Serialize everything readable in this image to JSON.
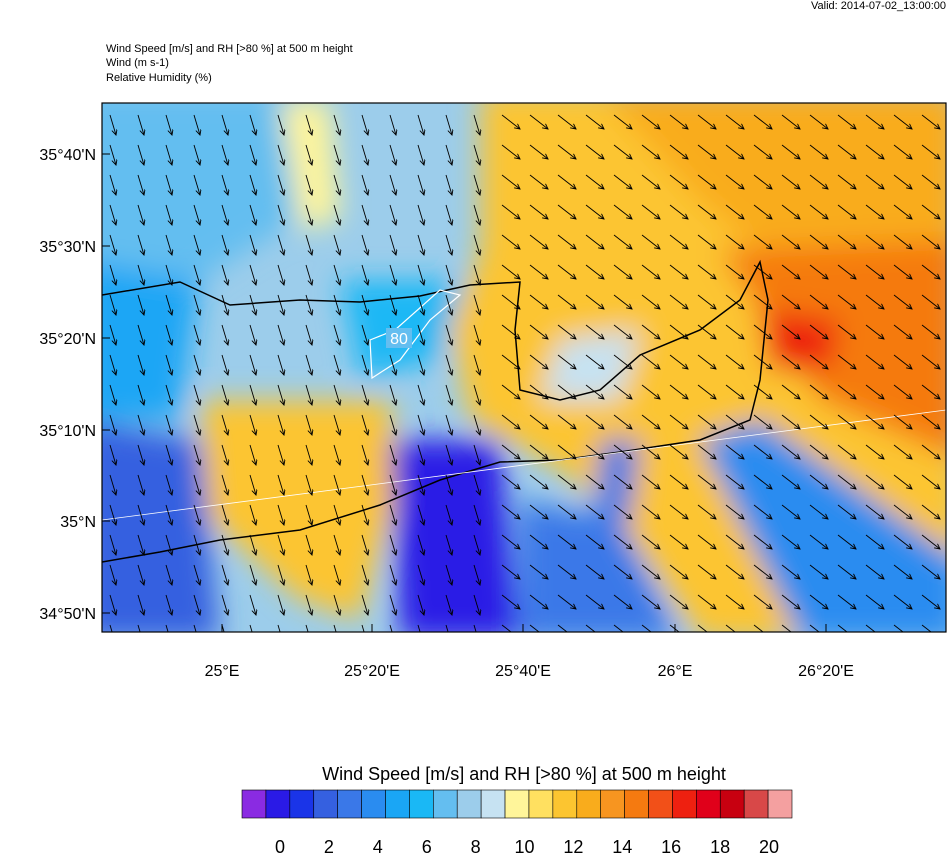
{
  "header": {
    "valid": "Valid: 2014-07-02_13:00:00",
    "lines": [
      "Wind Speed [m/s] and RH [>80 %] at 500 m height",
      "Wind   (m s-1)",
      "Relative Humidity   (%)"
    ]
  },
  "map": {
    "lat_labels": [
      "35°40'N",
      "35°30'N",
      "35°20'N",
      "35°10'N",
      "35°N",
      "34°50'N"
    ],
    "lon_labels": [
      "25°E",
      "25°20'E",
      "25°40'E",
      "26°E",
      "26°20'E"
    ],
    "contour_label": "80"
  },
  "colorbar": {
    "title": "Wind Speed [m/s] and RH [>80 %] at 500 m height",
    "colors": [
      "#8a2be2",
      "#2a1ae6",
      "#1a34e8",
      "#3560e0",
      "#3a78e8",
      "#2a8cf0",
      "#1aa6f5",
      "#1ab8f5",
      "#64bef0",
      "#9ccdeb",
      "#c6e2f2",
      "#fff59a",
      "#ffe060",
      "#fcc530",
      "#f9ac1c",
      "#f79520",
      "#f57a10",
      "#f25018",
      "#ee2010",
      "#e0001a",
      "#c80010",
      "#d84848",
      "#f4a0a0"
    ],
    "labels": [
      0,
      2,
      4,
      6,
      8,
      10,
      12,
      14,
      16,
      18,
      20
    ]
  }
}
